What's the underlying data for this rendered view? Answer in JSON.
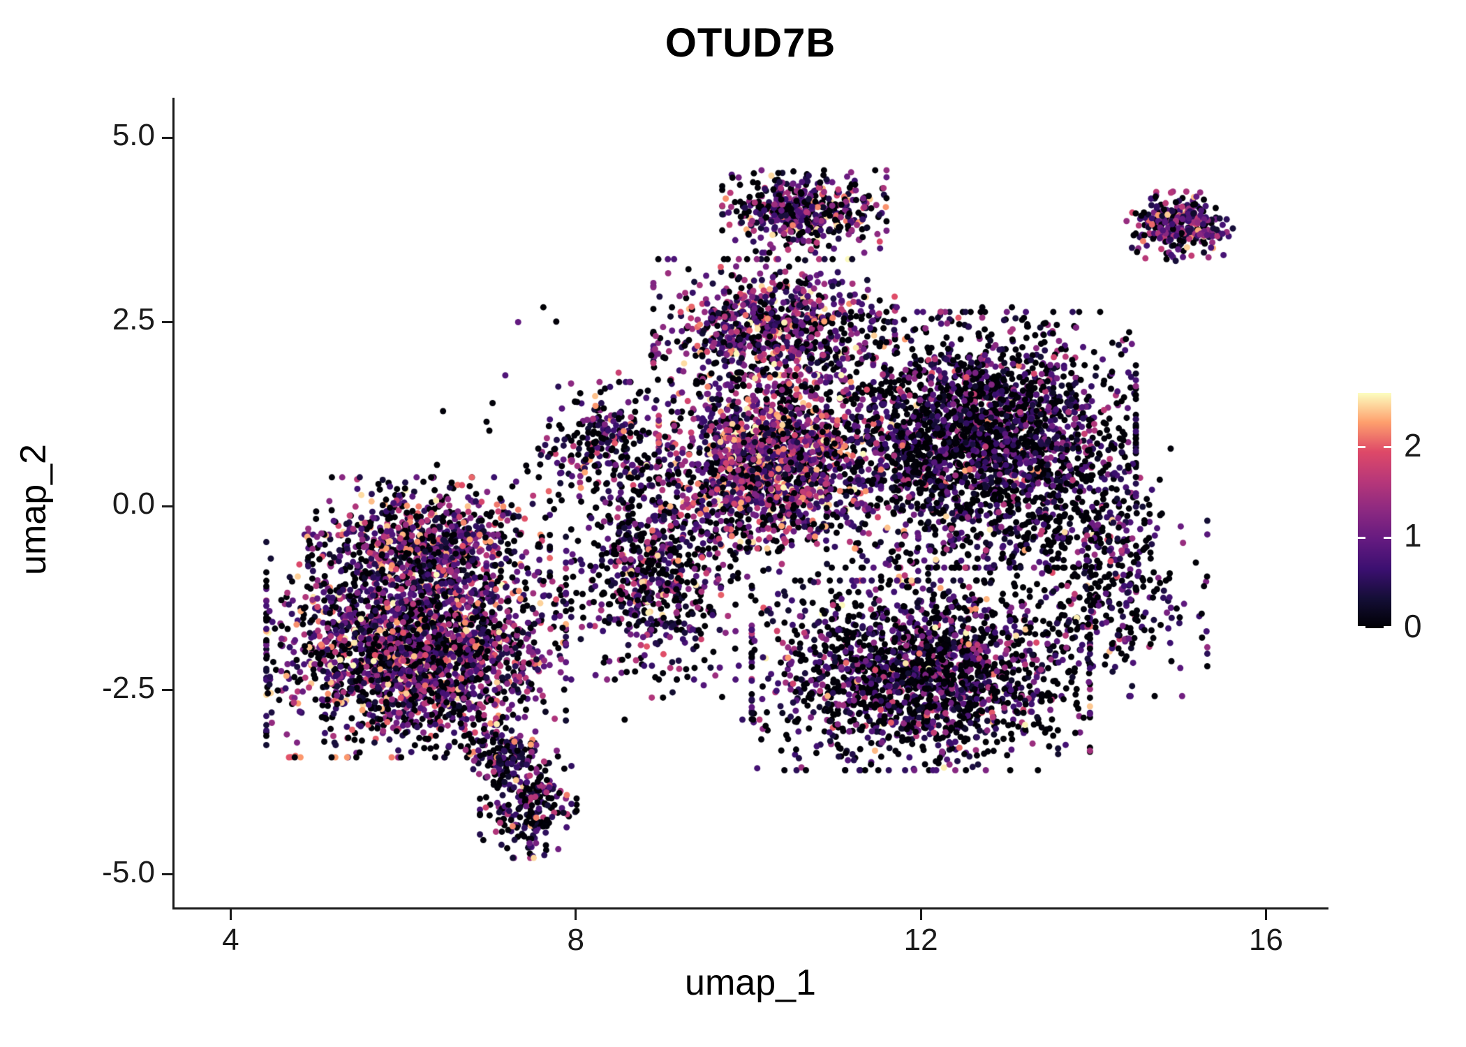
{
  "chart_data": {
    "type": "scatter",
    "title": "OTUD7B",
    "xlabel": "umap_1",
    "ylabel": "umap_2",
    "x_ticks": [
      {
        "value": 4,
        "label": "4"
      },
      {
        "value": 8,
        "label": "8"
      },
      {
        "value": 12,
        "label": "12"
      },
      {
        "value": 16,
        "label": "16"
      }
    ],
    "y_ticks": [
      {
        "value": 5.0,
        "label": "5.0"
      },
      {
        "value": 2.5,
        "label": "2.5"
      },
      {
        "value": 0.0,
        "label": "0.0"
      },
      {
        "value": -2.5,
        "label": "-2.5"
      },
      {
        "value": -5.0,
        "label": "-5.0"
      }
    ],
    "xlim": [
      3.35,
      16.7
    ],
    "ylim": [
      -5.45,
      5.45
    ],
    "grid": false,
    "legend_position": "right",
    "point_radius_px": 4.5,
    "seed": 123456,
    "colorbar": {
      "vmin": 0,
      "vmax": 2.6,
      "ticks": [
        {
          "value": 0,
          "label": "0"
        },
        {
          "value": 1,
          "label": "1"
        },
        {
          "value": 2,
          "label": "2"
        }
      ],
      "colormap_name": "magma",
      "colormap_anchors": [
        {
          "t": 0.0,
          "color": "#000004"
        },
        {
          "t": 0.125,
          "color": "#140e36"
        },
        {
          "t": 0.25,
          "color": "#3b0f70"
        },
        {
          "t": 0.375,
          "color": "#641a80"
        },
        {
          "t": 0.5,
          "color": "#8c2981"
        },
        {
          "t": 0.625,
          "color": "#b73779"
        },
        {
          "t": 0.75,
          "color": "#de4968"
        },
        {
          "t": 0.875,
          "color": "#fe9f6d"
        },
        {
          "t": 1.0,
          "color": "#fcfdbf"
        }
      ]
    },
    "expression_bands": [
      [
        0.0,
        0.05
      ],
      [
        0.2,
        0.9
      ],
      [
        0.9,
        1.7
      ],
      [
        1.7,
        2.6
      ]
    ],
    "clusters": [
      {
        "name": "left-lobe",
        "cx": 6.15,
        "cy": -1.9,
        "rx": 1.55,
        "ry": 1.35,
        "n": 2500,
        "weights": [
          0.33,
          0.3,
          0.25,
          0.12
        ]
      },
      {
        "name": "left-upper-arm",
        "cx": 6.3,
        "cy": -0.45,
        "rx": 1.25,
        "ry": 0.75,
        "n": 650,
        "weights": [
          0.28,
          0.3,
          0.27,
          0.15
        ]
      },
      {
        "name": "left-tail",
        "cx": 7.45,
        "cy": -4.05,
        "rx": 0.5,
        "ry": 0.65,
        "n": 240,
        "weights": [
          0.45,
          0.35,
          0.15,
          0.05
        ]
      },
      {
        "name": "tail-neck",
        "cx": 7.15,
        "cy": -3.35,
        "rx": 0.35,
        "ry": 0.45,
        "n": 110,
        "weights": [
          0.45,
          0.35,
          0.15,
          0.05
        ]
      },
      {
        "name": "bridge",
        "cx": 8.9,
        "cy": -0.9,
        "rx": 0.85,
        "ry": 1.3,
        "n": 620,
        "weights": [
          0.4,
          0.32,
          0.2,
          0.08
        ]
      },
      {
        "name": "bridge-upper",
        "cx": 8.35,
        "cy": 0.9,
        "rx": 0.7,
        "ry": 0.7,
        "n": 220,
        "weights": [
          0.35,
          0.35,
          0.22,
          0.08
        ]
      },
      {
        "name": "central-warm",
        "cx": 10.25,
        "cy": 0.6,
        "rx": 1.15,
        "ry": 1.05,
        "n": 1500,
        "weights": [
          0.2,
          0.27,
          0.33,
          0.2
        ]
      },
      {
        "name": "upper-middle",
        "cx": 10.3,
        "cy": 2.4,
        "rx": 1.25,
        "ry": 0.85,
        "n": 850,
        "weights": [
          0.3,
          0.3,
          0.28,
          0.12
        ]
      },
      {
        "name": "top-protrusion",
        "cx": 10.65,
        "cy": 4.0,
        "rx": 0.85,
        "ry": 0.5,
        "n": 480,
        "weights": [
          0.35,
          0.3,
          0.25,
          0.1
        ]
      },
      {
        "name": "right-lobe",
        "cx": 12.7,
        "cy": 0.9,
        "rx": 1.6,
        "ry": 1.55,
        "n": 2550,
        "weights": [
          0.52,
          0.32,
          0.14,
          0.02
        ]
      },
      {
        "name": "right-lower",
        "cx": 12.0,
        "cy": -2.3,
        "rx": 1.75,
        "ry": 1.15,
        "n": 1850,
        "weights": [
          0.5,
          0.32,
          0.15,
          0.03
        ]
      },
      {
        "name": "right-edge",
        "cx": 14.2,
        "cy": -0.9,
        "rx": 1.0,
        "ry": 1.5,
        "n": 420,
        "weights": [
          0.55,
          0.3,
          0.13,
          0.02
        ]
      },
      {
        "name": "satellite",
        "cx": 15.0,
        "cy": 3.8,
        "rx": 0.55,
        "ry": 0.42,
        "n": 280,
        "weights": [
          0.25,
          0.4,
          0.28,
          0.07
        ]
      },
      {
        "name": "sparse-fill",
        "cx": 10.2,
        "cy": -0.1,
        "rx": 3.4,
        "ry": 2.5,
        "n": 420,
        "weights": [
          0.6,
          0.25,
          0.12,
          0.03
        ]
      }
    ]
  }
}
